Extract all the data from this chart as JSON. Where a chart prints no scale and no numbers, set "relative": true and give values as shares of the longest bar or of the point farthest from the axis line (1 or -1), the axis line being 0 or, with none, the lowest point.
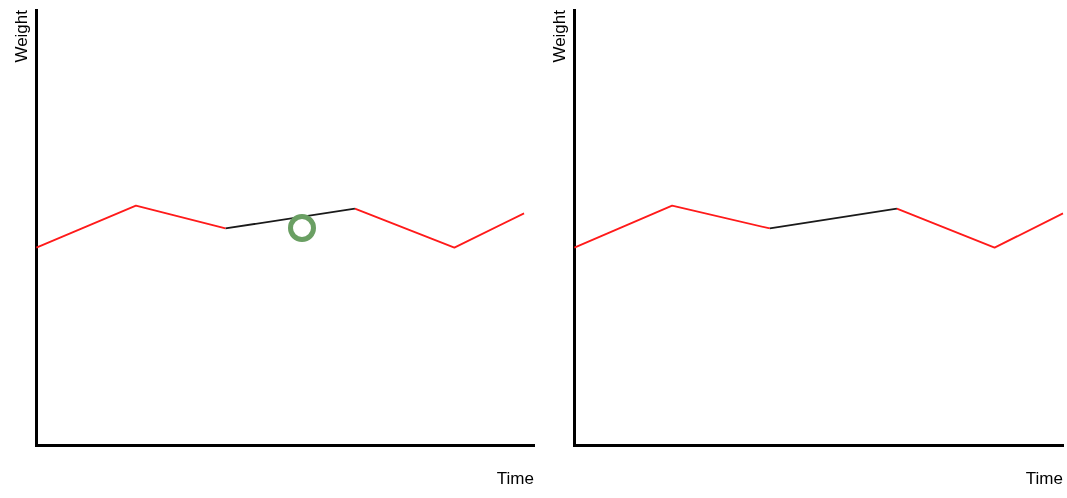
{
  "chart_data": [
    {
      "type": "line",
      "relative": true,
      "xlabel": "Time",
      "ylabel": "Weight",
      "marker": "none",
      "line_style": "solid",
      "categories": [
        null,
        null,
        null,
        null,
        null,
        null,
        null,
        null,
        null,
        null,
        null,
        null,
        null,
        null,
        null,
        null,
        null,
        null,
        null,
        null,
        null,
        null,
        null,
        null,
        null,
        null,
        null,
        null,
        null,
        null,
        null,
        null,
        null,
        null,
        null,
        null,
        null,
        null,
        null,
        null,
        null,
        null,
        null,
        null,
        null,
        null,
        null,
        null,
        null,
        null,
        null
      ],
      "series": [
        {
          "color": "#ff1a1a",
          "values": [
            0.825,
            null,
            null,
            null,
            null,
            null,
            null,
            null,
            null,
            null,
            1,
            null,
            null,
            null,
            null,
            null,
            null,
            null,
            null,
            0.905,
            null,
            null,
            null,
            null,
            null,
            null,
            null,
            null,
            null,
            null,
            null,
            null,
            null,
            null,
            null,
            null,
            null,
            null,
            null,
            null,
            null,
            null,
            null,
            null,
            null,
            null,
            null,
            null,
            null,
            null,
            null
          ]
        },
        {
          "color": "#1a1a1a",
          "values": [
            null,
            null,
            null,
            null,
            null,
            null,
            null,
            null,
            null,
            null,
            null,
            null,
            null,
            null,
            null,
            null,
            null,
            null,
            null,
            0.905,
            null,
            null,
            null,
            null,
            null,
            null,
            null,
            null,
            null,
            null,
            null,
            null,
            0.988,
            null,
            null,
            null,
            null,
            null,
            null,
            null,
            null,
            null,
            null,
            null,
            null,
            null,
            null,
            null,
            null,
            null,
            null
          ]
        },
        {
          "color": "#ff1a1a",
          "values": [
            null,
            null,
            null,
            null,
            null,
            null,
            null,
            null,
            null,
            null,
            null,
            null,
            null,
            null,
            null,
            null,
            null,
            null,
            null,
            null,
            null,
            null,
            null,
            null,
            null,
            null,
            null,
            null,
            null,
            null,
            null,
            null,
            0.988,
            null,
            null,
            null,
            null,
            null,
            null,
            null,
            null,
            null,
            0.825,
            null,
            null,
            null,
            null,
            null,
            null,
            0.968,
            null
          ]
        }
      ]
    },
    {
      "type": "line",
      "relative": true,
      "xlabel": "Time",
      "ylabel": "Weight",
      "marker": "none",
      "line_style": "solid",
      "categories": [
        null,
        null,
        null,
        null,
        null,
        null,
        null,
        null,
        null,
        null,
        null,
        null,
        null,
        null,
        null,
        null,
        null,
        null,
        null,
        null,
        null,
        null,
        null,
        null,
        null,
        null,
        null,
        null,
        null,
        null,
        null,
        null,
        null,
        null,
        null,
        null,
        null,
        null,
        null,
        null,
        null,
        null,
        null,
        null,
        null,
        null,
        null,
        null,
        null,
        null,
        null
      ],
      "series": [
        {
          "color": "#ff1a1a",
          "values": [
            0.825,
            null,
            null,
            null,
            null,
            null,
            null,
            null,
            null,
            null,
            1,
            null,
            null,
            null,
            null,
            null,
            null,
            null,
            null,
            null,
            0.905,
            null,
            null,
            null,
            null,
            null,
            null,
            null,
            null,
            null,
            null,
            null,
            null,
            null,
            null,
            null,
            null,
            null,
            null,
            null,
            null,
            null,
            null,
            null,
            null,
            null,
            null,
            null,
            null,
            null,
            null
          ]
        },
        {
          "color": "#1a1a1a",
          "values": [
            null,
            null,
            null,
            null,
            null,
            null,
            null,
            null,
            null,
            null,
            null,
            null,
            null,
            null,
            null,
            null,
            null,
            null,
            null,
            null,
            0.905,
            null,
            null,
            null,
            null,
            null,
            null,
            null,
            null,
            null,
            null,
            null,
            null,
            0.988,
            null,
            null,
            null,
            null,
            null,
            null,
            null,
            null,
            null,
            null,
            null,
            null,
            null,
            null,
            null,
            null,
            null
          ]
        },
        {
          "color": "#ff1a1a",
          "values": [
            null,
            null,
            null,
            null,
            null,
            null,
            null,
            null,
            null,
            null,
            null,
            null,
            null,
            null,
            null,
            null,
            null,
            null,
            null,
            null,
            null,
            null,
            null,
            null,
            null,
            null,
            null,
            null,
            null,
            null,
            null,
            null,
            null,
            0.988,
            null,
            null,
            null,
            null,
            null,
            null,
            null,
            null,
            null,
            0.825,
            null,
            null,
            null,
            null,
            null,
            null,
            0.968
          ]
        }
      ]
    }
  ]
}
